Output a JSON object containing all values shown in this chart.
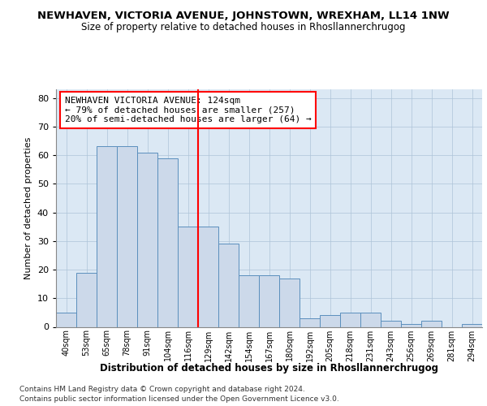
{
  "title": "NEWHAVEN, VICTORIA AVENUE, JOHNSTOWN, WREXHAM, LL14 1NW",
  "subtitle": "Size of property relative to detached houses in Rhosllannerchrugog",
  "xlabel": "Distribution of detached houses by size in Rhosllannerchrugog",
  "ylabel": "Number of detached properties",
  "categories": [
    "40sqm",
    "53sqm",
    "65sqm",
    "78sqm",
    "91sqm",
    "104sqm",
    "116sqm",
    "129sqm",
    "142sqm",
    "154sqm",
    "167sqm",
    "180sqm",
    "192sqm",
    "205sqm",
    "218sqm",
    "231sqm",
    "243sqm",
    "256sqm",
    "269sqm",
    "281sqm",
    "294sqm"
  ],
  "values": [
    5,
    19,
    63,
    63,
    61,
    59,
    35,
    35,
    29,
    18,
    18,
    17,
    3,
    4,
    5,
    5,
    2,
    1,
    2,
    0,
    1
  ],
  "bar_color": "#ccd9ea",
  "bar_edge_color": "#5b8fbd",
  "bar_edge_width": 0.7,
  "grid_color": "#aec4d8",
  "background_color": "#dbe8f4",
  "vline_x_index": 7,
  "vline_color": "red",
  "annotation_text": "NEWHAVEN VICTORIA AVENUE: 124sqm\n← 79% of detached houses are smaller (257)\n20% of semi-detached houses are larger (64) →",
  "annotation_box_color": "white",
  "annotation_box_edge_color": "red",
  "ylim": [
    0,
    83
  ],
  "yticks": [
    0,
    10,
    20,
    30,
    40,
    50,
    60,
    70,
    80
  ],
  "footer_line1": "Contains HM Land Registry data © Crown copyright and database right 2024.",
  "footer_line2": "Contains public sector information licensed under the Open Government Licence v3.0."
}
